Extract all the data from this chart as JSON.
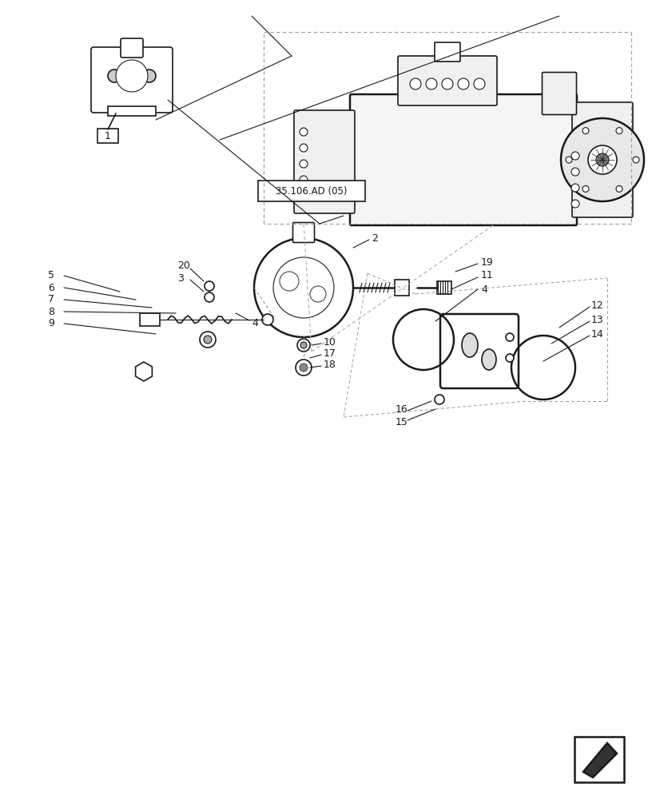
{
  "bg_color": "#ffffff",
  "line_color": "#1a1a1a",
  "label_color": "#1a1a1a",
  "fig_width": 8.12,
  "fig_height": 10.0,
  "dpi": 100,
  "parts": {
    "part1_label": "1",
    "part2_label": "2",
    "part3_label": "3",
    "part4_label": "4",
    "part5_label": "5",
    "part6_label": "6",
    "part7_label": "7",
    "part8_label": "8",
    "part9_label": "9",
    "part10_label": "10",
    "part11_label": "11",
    "part12_label": "12",
    "part13_label": "13",
    "part14_label": "14",
    "part15_label": "15",
    "part16_label": "16",
    "part17_label": "17",
    "part18_label": "18",
    "part19_label": "19",
    "part20_label": "20"
  },
  "ref_label": "35.106.AD (05)"
}
